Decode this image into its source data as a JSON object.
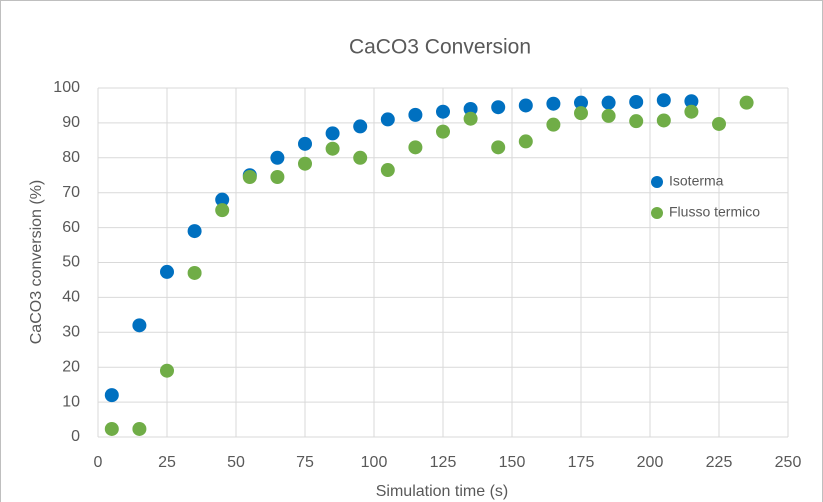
{
  "chart_data": {
    "type": "scatter",
    "title": "CaCO3 Conversion",
    "x_label": "Simulation time (s)",
    "y_label": "CaCO3 conversion (%)",
    "series": [
      {
        "name": "Isoterma",
        "color": "#0070c0",
        "x": [
          5,
          15,
          25,
          35,
          45,
          55,
          65,
          75,
          85,
          95,
          105,
          115,
          125,
          135,
          145,
          155,
          165,
          175,
          185,
          195,
          205,
          215
        ],
        "values": [
          12,
          32,
          47.3,
          59,
          68,
          75,
          80,
          84,
          87,
          89,
          91,
          92.3,
          93.2,
          94,
          94.5,
          95,
          95.5,
          95.8,
          95.8,
          96,
          96.5,
          96.2
        ]
      },
      {
        "name": "Flusso termico",
        "color": "#70ad47",
        "x": [
          5,
          15,
          25,
          35,
          45,
          55,
          65,
          75,
          85,
          95,
          105,
          115,
          125,
          135,
          145,
          155,
          165,
          175,
          185,
          195,
          205,
          215,
          225,
          235
        ],
        "values": [
          2.3,
          2.3,
          19,
          47,
          65,
          74.5,
          74.5,
          78.3,
          82.6,
          80,
          76.5,
          83,
          87.5,
          91.2,
          83,
          84.7,
          89.5,
          92.8,
          92,
          90.5,
          90.7,
          93.2,
          89.7,
          95.8
        ]
      }
    ],
    "xlim": [
      0,
      250
    ],
    "xticks": [
      0,
      25,
      50,
      75,
      100,
      125,
      150,
      175,
      200,
      225,
      250
    ],
    "ylim": [
      0,
      100
    ],
    "yticks": [
      0,
      10,
      20,
      30,
      40,
      50,
      60,
      70,
      80,
      90,
      100
    ],
    "grid": true,
    "legend": "right"
  }
}
